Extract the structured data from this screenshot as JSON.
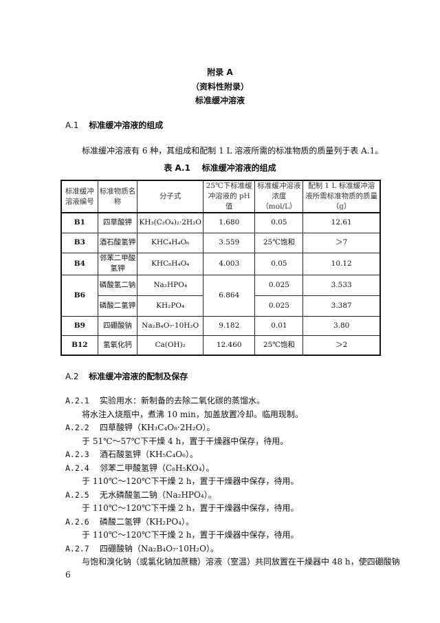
{
  "appendix": {
    "title": "附录 A",
    "subtitle": "（资料性附录）",
    "heading": "标准缓冲溶液"
  },
  "section_a1": {
    "number": "A.1",
    "title": "标准缓冲溶液的组成",
    "paragraph": "标准缓冲溶液有 6 种，其组成和配制 1 L 溶液所需的标准物质的质量列于表 A.1。",
    "table_caption_number": "表 A.1",
    "table_caption": "标准缓冲溶液的组成"
  },
  "table": {
    "headers": [
      "标准缓冲溶液编号",
      "标准物质名称",
      "分子式",
      "25℃下标准缓冲溶液的 pH 值",
      "标准缓冲溶液浓度（mol/L）",
      "配制 1 L 标准缓冲溶液所需标准物质的质量（g）"
    ],
    "rows": [
      {
        "code": "B1",
        "name": "四草酸钾",
        "formula": "KH₃(C₂O₄)₂·2H₂O",
        "ph": "1.680",
        "conc": "0.05",
        "mass": "12.61"
      },
      {
        "code": "B3",
        "name": "酒石酸氢钾",
        "formula": "KHC₄H₄O₆",
        "ph": "3.559",
        "conc": "25℃饱和",
        "mass": "＞7"
      },
      {
        "code": "B4",
        "name": "邻苯二甲酸氢钾",
        "formula": "KHC₈H₄O₄",
        "ph": "4.003",
        "conc": "0.05",
        "mass": "10.12"
      },
      {
        "code": "B6",
        "name": "磷酸氢二钠",
        "formula": "Na₂HPO₄",
        "ph": "6.864",
        "conc": "0.025",
        "mass": "3.533"
      },
      {
        "code": "",
        "name": "磷酸二氢钾",
        "formula": "KH₂PO₄",
        "ph": "",
        "conc": "0.025",
        "mass": "3.387"
      },
      {
        "code": "B9",
        "name": "四硼酸钠",
        "formula": "Na₂B₄O₇·10H₂O",
        "ph": "9.182",
        "conc": "0.01",
        "mass": "3.80"
      },
      {
        "code": "B12",
        "name": "氢氧化钙",
        "formula": "Ca(OH)₂",
        "ph": "12.460",
        "conc": "25℃饱和",
        "mass": "＞2"
      }
    ]
  },
  "section_a2": {
    "number": "A.2",
    "title": "标准缓冲溶液的配制及保存",
    "lines": [
      {
        "num": "A.2.1",
        "text": "实验用水：新制备的去除二氧化碳的蒸馏水。"
      },
      {
        "num": "",
        "text": "将水注入烧瓶中，煮沸 10 min，加盖放置冷却。临用现制。"
      },
      {
        "num": "A.2.2",
        "text": "四草酸钾（KH₃C₄O₈·2H₂O）。"
      },
      {
        "num": "",
        "text": "于 51℃～57℃下干燥 4 h，置于干燥器中保存，待用。"
      },
      {
        "num": "A.2.3",
        "text": "酒石酸氢钾（KH₅C₄O₆）。"
      },
      {
        "num": "A.2.4",
        "text": "邻苯二甲酸氢钾（C₈H₅KO₄）。"
      },
      {
        "num": "",
        "text": "于 110℃～120℃下干燥 2 h，置于干燥器中保存，待用。"
      },
      {
        "num": "A.2.5",
        "text": "无水磷酸氢二钠（Na₂HPO₄）。"
      },
      {
        "num": "",
        "text": "于 110℃～120℃下干燥 2 h，置于干燥器中保存，待用。"
      },
      {
        "num": "A.2.6",
        "text": "磷酸二氢钾（KH₂PO₄）。"
      },
      {
        "num": "",
        "text": "于 110℃～120℃下干燥 2 h，置于干燥器中保存，待用。"
      },
      {
        "num": "A.2.7",
        "text": "四硼酸钠（Na₂B₄O₇·10H₂O）。"
      },
      {
        "num": "",
        "text": "与饱和溴化钠（或氯化钠加蔗糖）溶液（室温）共同放置在干燥器中 48 h，使四硼酸钠"
      }
    ]
  },
  "page_number": "6"
}
